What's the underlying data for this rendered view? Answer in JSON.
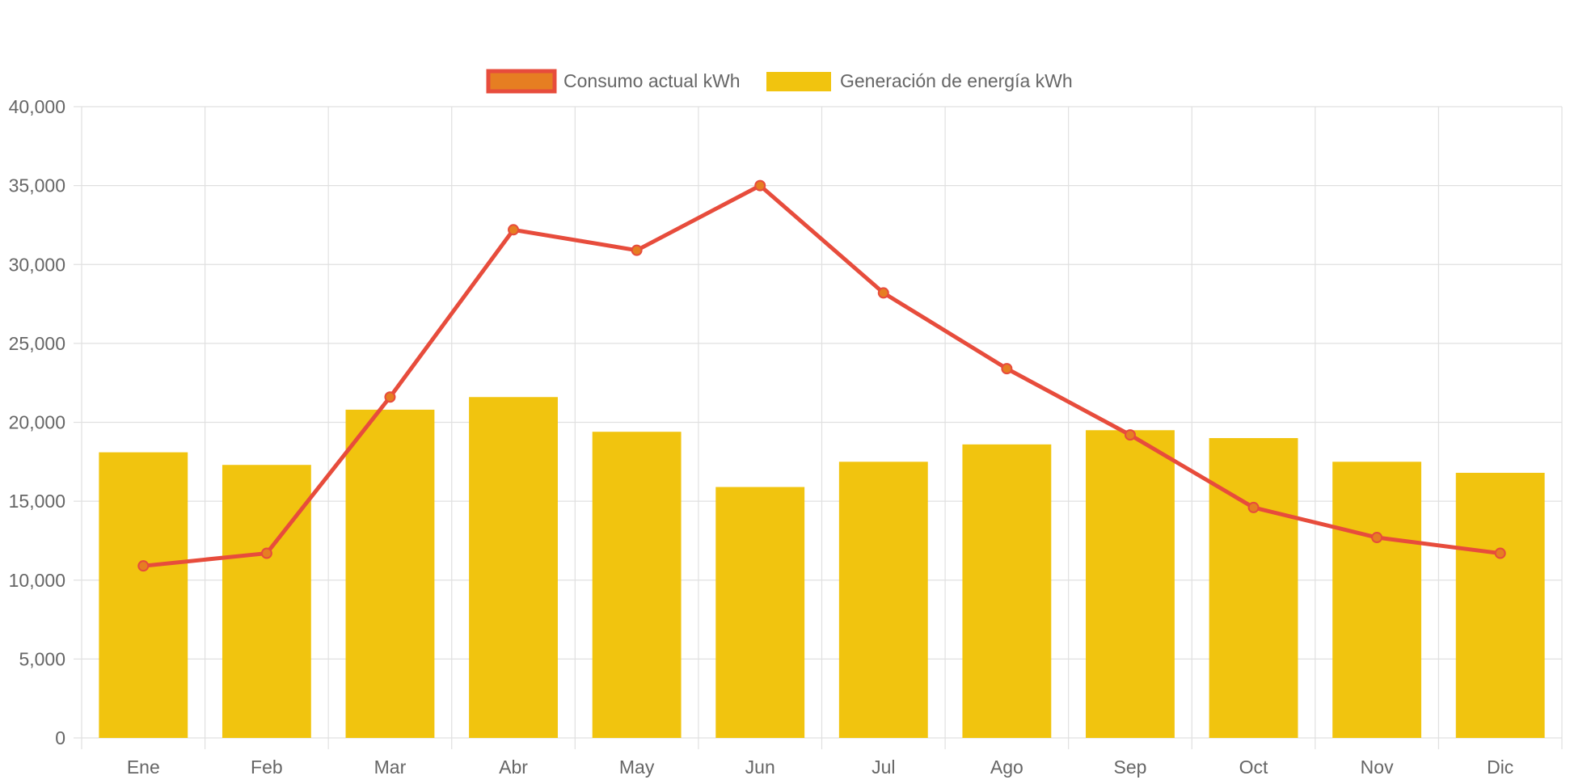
{
  "chart_data": {
    "type": "bar",
    "categories": [
      "Ene",
      "Feb",
      "Mar",
      "Abr",
      "May",
      "Jun",
      "Jul",
      "Ago",
      "Sep",
      "Oct",
      "Nov",
      "Dic"
    ],
    "series": [
      {
        "name": "Consumo actual kWh",
        "type": "line",
        "values": [
          10900,
          11700,
          21600,
          32200,
          30900,
          35000,
          28200,
          23400,
          19200,
          14600,
          12700,
          11700
        ],
        "color": "#e74c3c",
        "point_color": "#e67e22"
      },
      {
        "name": "Generación de energía kWh",
        "type": "bar",
        "values": [
          18100,
          17300,
          20800,
          21600,
          19400,
          15900,
          17500,
          18600,
          19500,
          19000,
          17500,
          16800
        ],
        "color": "#f1c40f"
      }
    ],
    "ylim": [
      0,
      40000
    ],
    "y_ticks": [
      0,
      5000,
      10000,
      15000,
      20000,
      25000,
      30000,
      35000,
      40000
    ],
    "y_tick_labels": [
      "0",
      "5,000",
      "10,000",
      "15,000",
      "20,000",
      "25,000",
      "30,000",
      "35,000",
      "40,000"
    ],
    "title": "",
    "xlabel": "",
    "ylabel": "",
    "grid": true,
    "legend_position": "top-center",
    "grid_color": "#e0e0e0",
    "text_color": "#666666"
  }
}
